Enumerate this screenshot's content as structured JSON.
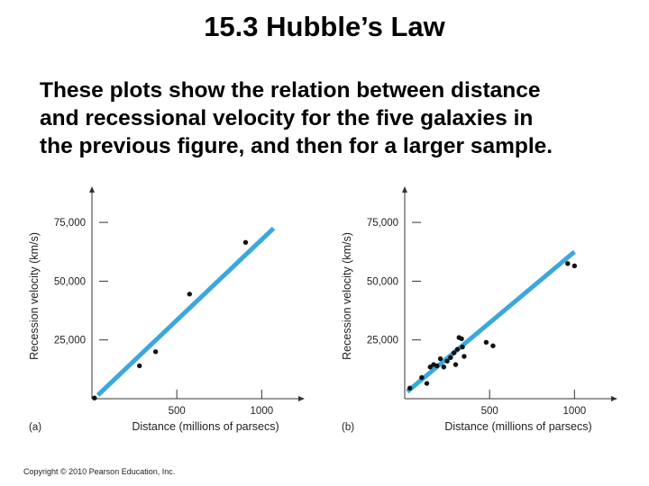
{
  "page": {
    "title": "15.3 Hubble’s Law",
    "body_lines": [
      "These plots show the relation between distance",
      "and recessional velocity for the five galaxies in",
      "the previous figure, and then for a larger sample."
    ],
    "copyright": "Copyright © 2010 Pearson Education, Inc."
  },
  "colors": {
    "fit_line": "#3aa8dc",
    "points": "#111111",
    "axes": "#333333"
  },
  "chart_data": [
    {
      "type": "scatter",
      "panel_label": "(a)",
      "title": "",
      "xlabel": "Distance (millions of parsecs)",
      "ylabel": "Recession velocity (km/s)",
      "xlim": [
        0,
        1200
      ],
      "ylim": [
        0,
        85000
      ],
      "xticks": [
        500,
        1000
      ],
      "xtick_labels": [
        "500",
        "1000"
      ],
      "yticks": [
        25000,
        50000,
        75000
      ],
      "ytick_labels": [
        "25,000",
        "50,000",
        "75,000"
      ],
      "grid": false,
      "series": [
        {
          "x": [
            15,
            280,
            375,
            575,
            905
          ],
          "y": [
            300,
            14000,
            20000,
            44500,
            66500
          ]
        }
      ],
      "fit_line": {
        "x": [
          35,
          1070
        ],
        "y": [
          1500,
          72500
        ]
      }
    },
    {
      "type": "scatter",
      "panel_label": "(b)",
      "title": "",
      "xlabel": "Distance (millions of parsecs)",
      "ylabel": "Recession velocity (km/s)",
      "xlim": [
        0,
        1200
      ],
      "ylim": [
        0,
        85000
      ],
      "xticks": [
        500,
        1000
      ],
      "xtick_labels": [
        "500",
        "1000"
      ],
      "yticks": [
        25000,
        50000,
        75000
      ],
      "ytick_labels": [
        "25,000",
        "50,000",
        "75,000"
      ],
      "grid": false,
      "series": [
        {
          "x": [
            30,
            100,
            130,
            150,
            170,
            190,
            210,
            230,
            250,
            270,
            290,
            300,
            310,
            320,
            335,
            340,
            350,
            480,
            520,
            960,
            1000
          ],
          "y": [
            4500,
            9000,
            6500,
            13500,
            14500,
            14000,
            17000,
            13500,
            16000,
            17500,
            19500,
            14500,
            21000,
            26000,
            25500,
            22000,
            18000,
            24000,
            22500,
            57500,
            56500
          ]
        }
      ],
      "fit_line": {
        "x": [
          15,
          1000
        ],
        "y": [
          3000,
          62500
        ]
      }
    }
  ]
}
